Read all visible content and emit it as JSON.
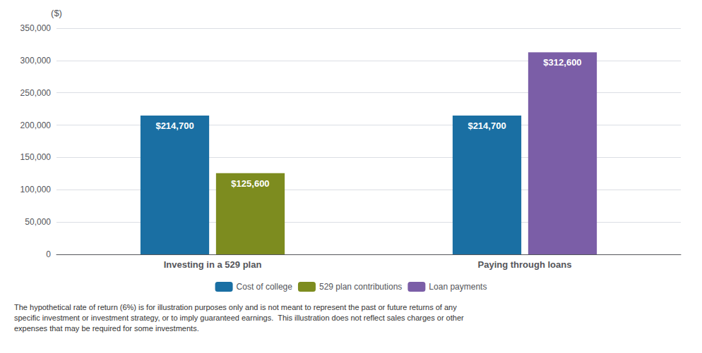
{
  "chart_data": {
    "type": "bar",
    "categories": [
      "Investing in a 529 plan",
      "Paying through loans"
    ],
    "series": [
      {
        "name": "Cost of college",
        "color": "#1a6fa3",
        "values": [
          214700,
          214700
        ],
        "value_labels": [
          "$214,700",
          "$214,700"
        ]
      },
      {
        "name": "529 plan contributions",
        "color": "#7d8c1f",
        "values": [
          125600,
          null
        ],
        "value_labels": [
          "$125,600",
          null
        ]
      },
      {
        "name": "Loan payments",
        "color": "#7b5ea7",
        "values": [
          null,
          312600
        ],
        "value_labels": [
          null,
          "$312,600"
        ]
      }
    ],
    "ylabel": "($)",
    "ylim": [
      0,
      350000
    ],
    "yticks": [
      0,
      {
        "value": 50000,
        "label": "50,000"
      },
      {
        "value": 100000,
        "label": "100,000"
      },
      {
        "value": 150000,
        "label": "150,000"
      },
      {
        "value": 200000,
        "label": "200,000"
      },
      {
        "value": 250000,
        "label": "250,000"
      },
      {
        "value": 300000,
        "label": "300,000"
      },
      {
        "value": 350000,
        "label": "350,000"
      }
    ],
    "grid": true,
    "legend": "bottom",
    "data_labels": true,
    "footnote": [
      "The hypothetical rate of return (6%) is for illustration purposes only and is not meant to represent the past or future returns of any",
      "specific investment or investment strategy, or to imply guaranteed earnings.  This illustration does not reflect sales charges or other",
      "expenses that may be required for some investments."
    ]
  }
}
